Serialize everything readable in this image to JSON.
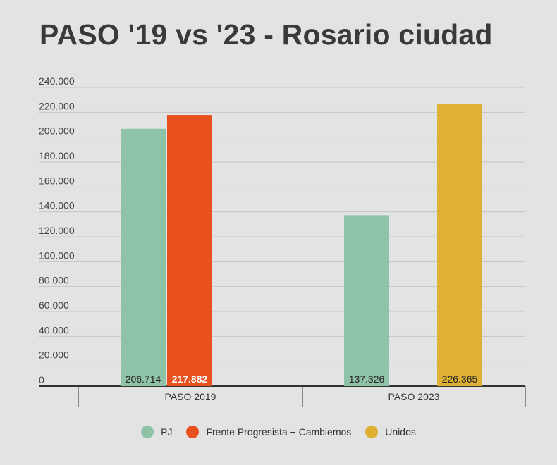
{
  "chart_data": {
    "type": "bar",
    "title": "PASO '19 vs '23 - Rosario ciudad",
    "categories": [
      "PASO 2019",
      "PASO 2023"
    ],
    "series": [
      {
        "name": "PJ",
        "color": "#8fc3a7",
        "values": [
          206714,
          137326
        ],
        "labels": [
          "206.714",
          "137.326"
        ],
        "label_color": "#222222"
      },
      {
        "name": "Frente Progresista + Cambiemos",
        "color": "#e8511e",
        "values": [
          217882,
          null
        ],
        "labels": [
          "217.882",
          ""
        ],
        "label_color": "#ffffff"
      },
      {
        "name": "Unidos",
        "color": "#deb134",
        "values": [
          null,
          226365
        ],
        "labels": [
          "",
          "226.365"
        ],
        "label_color": "#222222"
      }
    ],
    "ylim": [
      0,
      240000
    ],
    "yticks": [
      0,
      20000,
      40000,
      60000,
      80000,
      100000,
      120000,
      140000,
      160000,
      180000,
      200000,
      220000,
      240000
    ],
    "ytick_labels": [
      "0",
      "20.000",
      "40.000",
      "60.000",
      "80.000",
      "100.000",
      "120.000",
      "140.000",
      "160.000",
      "180.000",
      "200.000",
      "220.000",
      "240.000"
    ],
    "grid": true,
    "legend_position": "bottom-center",
    "xlabel": "",
    "ylabel": ""
  }
}
